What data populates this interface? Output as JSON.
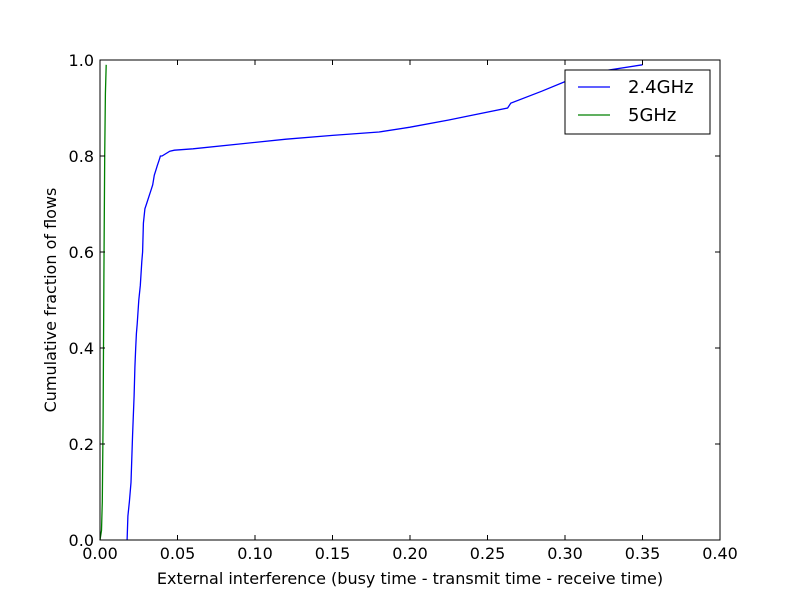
{
  "chart_data": {
    "type": "line",
    "title": "",
    "xlabel": "External interference (busy time - transmit time - receive time)",
    "ylabel": "Cumulative fraction of flows",
    "xlim": [
      0.0,
      0.4
    ],
    "ylim": [
      0.0,
      1.0
    ],
    "x_ticks": [
      0.0,
      0.05,
      0.1,
      0.15,
      0.2,
      0.25,
      0.3,
      0.35,
      0.4
    ],
    "x_tick_labels": [
      "0.00",
      "0.05",
      "0.10",
      "0.15",
      "0.20",
      "0.25",
      "0.30",
      "0.35",
      "0.40"
    ],
    "y_ticks": [
      0.0,
      0.2,
      0.4,
      0.6,
      0.8,
      1.0
    ],
    "y_tick_labels": [
      "0.0",
      "0.2",
      "0.4",
      "0.6",
      "0.8",
      "1.0"
    ],
    "grid": false,
    "legend_position": "top-right",
    "series": [
      {
        "name": "2.4GHz",
        "color": "#0000ff",
        "x": [
          0.0175,
          0.018,
          0.019,
          0.02,
          0.021,
          0.022,
          0.0225,
          0.023,
          0.0235,
          0.024,
          0.025,
          0.026,
          0.027,
          0.0275,
          0.028,
          0.029,
          0.03,
          0.032,
          0.033,
          0.034,
          0.035,
          0.036,
          0.037,
          0.038,
          0.039,
          0.04,
          0.045,
          0.048,
          0.06,
          0.09,
          0.12,
          0.15,
          0.18,
          0.2,
          0.225,
          0.24,
          0.263,
          0.265,
          0.285,
          0.3,
          0.32,
          0.35
        ],
        "y": [
          0.0,
          0.05,
          0.08,
          0.12,
          0.22,
          0.3,
          0.36,
          0.4,
          0.43,
          0.45,
          0.5,
          0.53,
          0.58,
          0.6,
          0.66,
          0.69,
          0.7,
          0.72,
          0.73,
          0.74,
          0.76,
          0.77,
          0.78,
          0.79,
          0.8,
          0.8,
          0.81,
          0.812,
          0.815,
          0.825,
          0.835,
          0.843,
          0.85,
          0.86,
          0.875,
          0.885,
          0.9,
          0.91,
          0.935,
          0.955,
          0.975,
          0.99
        ]
      },
      {
        "name": "5GHz",
        "color": "#008000",
        "x": [
          0.0,
          0.001,
          0.0015,
          0.002,
          0.0025,
          0.003,
          0.0035,
          0.004
        ],
        "y": [
          0.0,
          0.02,
          0.08,
          0.25,
          0.55,
          0.8,
          0.93,
          0.99
        ]
      }
    ]
  }
}
